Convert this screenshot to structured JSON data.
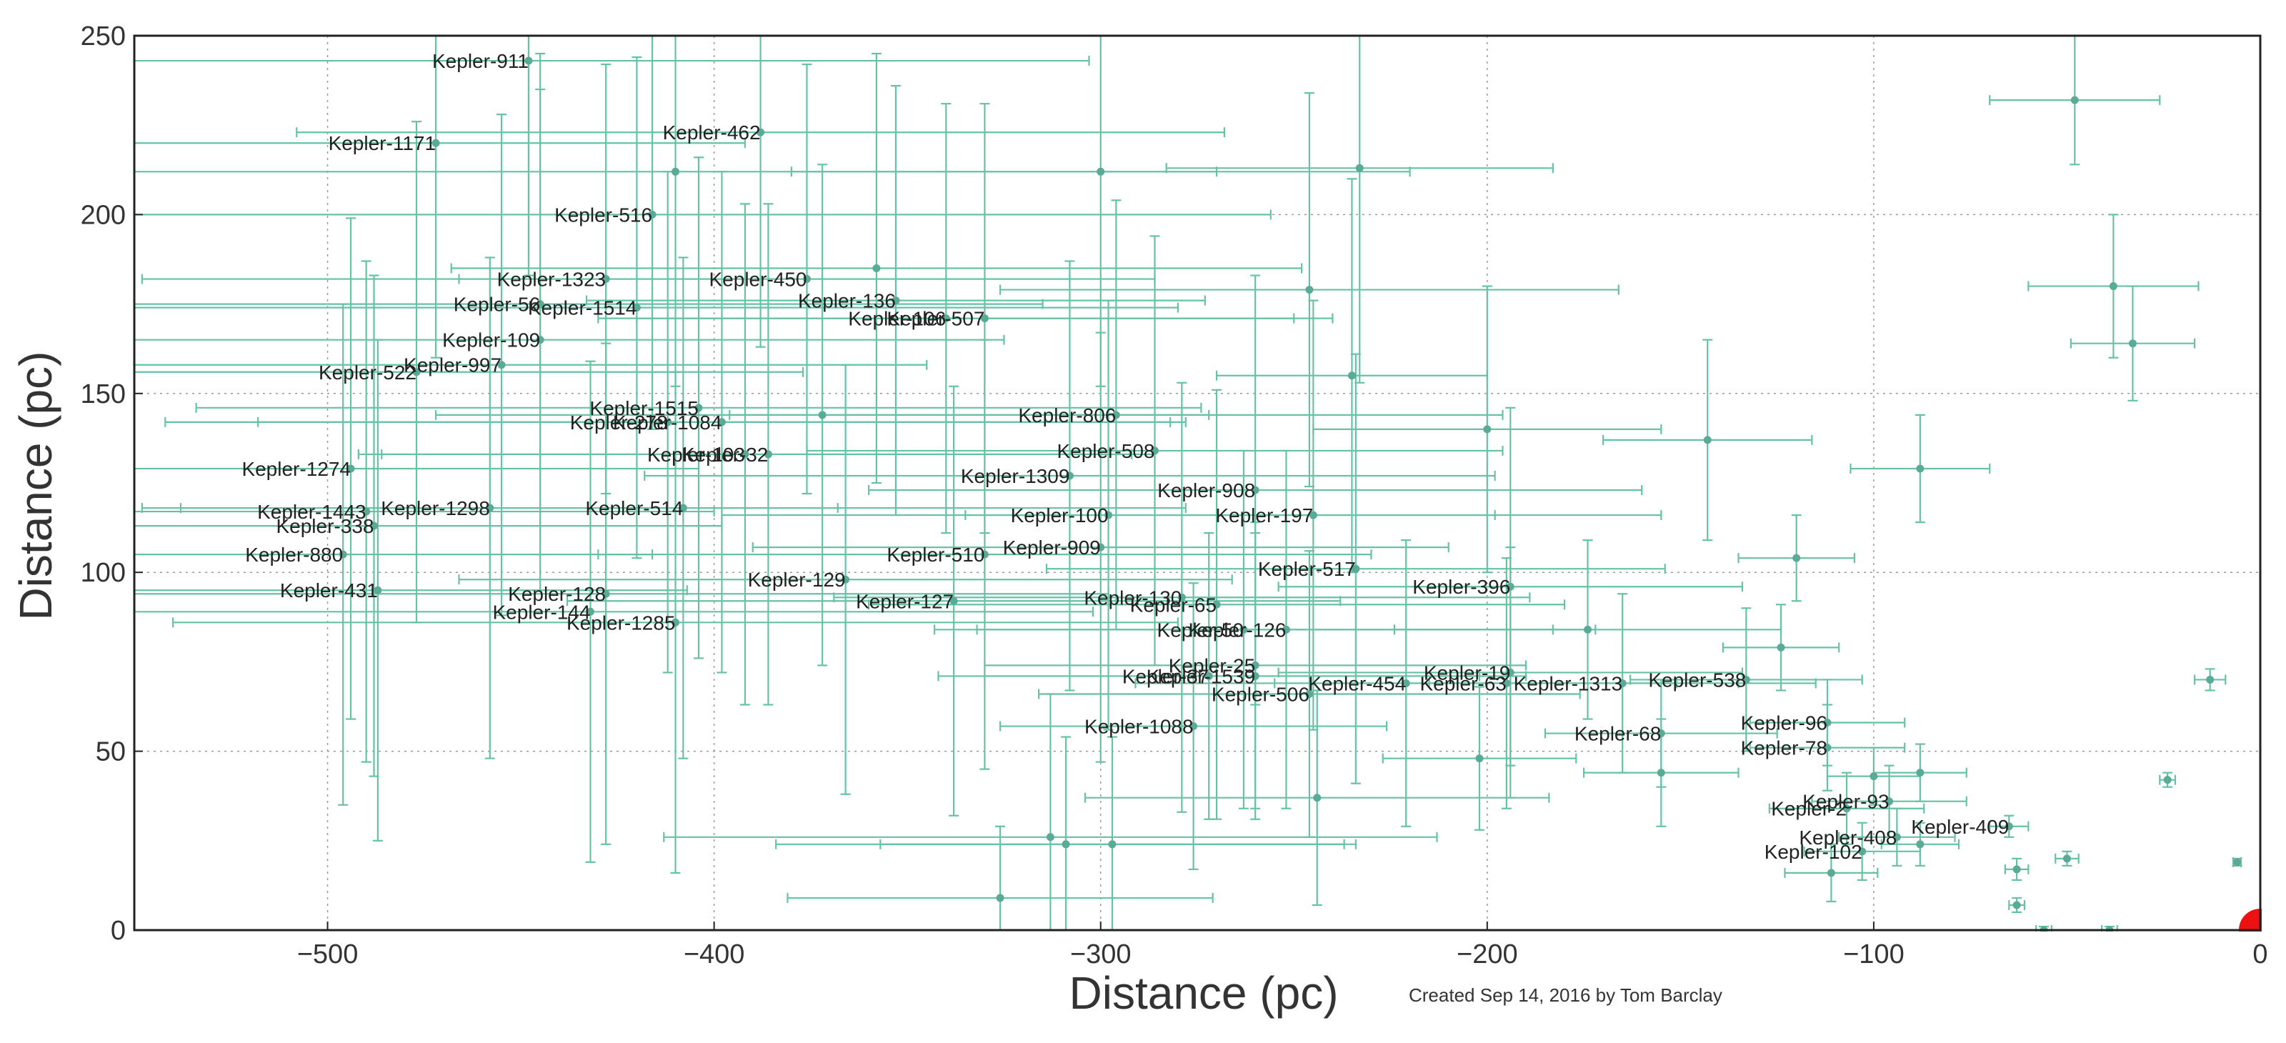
{
  "chart_data": {
    "type": "scatter",
    "title": "",
    "xlabel": "Distance (pc)",
    "ylabel": "Distance (pc)",
    "xlim": [
      -550,
      0
    ],
    "ylim": [
      0,
      250
    ],
    "xticks": [
      -500,
      -400,
      -300,
      -200,
      -100,
      0
    ],
    "yticks": [
      0,
      50,
      100,
      150,
      200,
      250
    ],
    "xtick_labels": [
      "−500",
      "−400",
      "−300",
      "−200",
      "−100",
      "0"
    ],
    "ytick_labels": [
      "0",
      "50",
      "100",
      "150",
      "200",
      "250"
    ],
    "grid": true,
    "colors": {
      "points": "#66c2a5",
      "marker": "#5aaa98",
      "sun": "#ee1111",
      "frame": "#222222",
      "grid": "#999999"
    },
    "credit": "Created Sep 14, 2016 by Tom Barclay",
    "points": [
      {
        "x": -448,
        "y": 243,
        "xerr": 145,
        "yerr": 60,
        "label": "Kepler-911"
      },
      {
        "x": -472,
        "y": 220,
        "xerr": 80,
        "yerr": 60,
        "label": "Kepler-1171"
      },
      {
        "x": -388,
        "y": 223,
        "xerr": 120,
        "yerr": 60,
        "label": "Kepler-462"
      },
      {
        "x": -410,
        "y": 212,
        "xerr": 140,
        "yerr": 60,
        "label": ""
      },
      {
        "x": -416,
        "y": 200,
        "xerr": 160,
        "yerr": 60,
        "label": "Kepler-516"
      },
      {
        "x": -428,
        "y": 182,
        "xerr": 120,
        "yerr": 60,
        "label": "Kepler-1323"
      },
      {
        "x": -376,
        "y": 182,
        "xerr": 90,
        "yerr": 60,
        "label": "Kepler-450"
      },
      {
        "x": -445,
        "y": 175,
        "xerr": 130,
        "yerr": 70,
        "label": "Kepler-56"
      },
      {
        "x": -420,
        "y": 174,
        "xerr": 140,
        "yerr": 70,
        "label": "Kepler-1514"
      },
      {
        "x": -353,
        "y": 176,
        "xerr": 80,
        "yerr": 60,
        "label": "Kepler-136"
      },
      {
        "x": -340,
        "y": 171,
        "xerr": 90,
        "yerr": 60,
        "label": "Kepler-106"
      },
      {
        "x": -330,
        "y": 171,
        "xerr": 90,
        "yerr": 60,
        "label": "Kepler-507"
      },
      {
        "x": -445,
        "y": 165,
        "xerr": 120,
        "yerr": 70,
        "label": "Kepler-109"
      },
      {
        "x": -455,
        "y": 158,
        "xerr": 110,
        "yerr": 70,
        "label": "Kepler-997"
      },
      {
        "x": -477,
        "y": 156,
        "xerr": 100,
        "yerr": 70,
        "label": "Kepler-522"
      },
      {
        "x": -404,
        "y": 146,
        "xerr": 130,
        "yerr": 70,
        "label": "Kepler-1515"
      },
      {
        "x": -412,
        "y": 142,
        "xerr": 130,
        "yerr": 70,
        "label": "Kepler-278"
      },
      {
        "x": -398,
        "y": 142,
        "xerr": 120,
        "yerr": 70,
        "label": "Kepler-1084"
      },
      {
        "x": -372,
        "y": 144,
        "xerr": 100,
        "yerr": 70,
        "label": ""
      },
      {
        "x": -296,
        "y": 144,
        "xerr": 100,
        "yerr": 60,
        "label": "Kepler-806"
      },
      {
        "x": -392,
        "y": 133,
        "xerr": 100,
        "yerr": 70,
        "label": "Kepler-103"
      },
      {
        "x": -386,
        "y": 133,
        "xerr": 100,
        "yerr": 70,
        "label": "Kepler-32"
      },
      {
        "x": -286,
        "y": 134,
        "xerr": 90,
        "yerr": 60,
        "label": "Kepler-508"
      },
      {
        "x": -494,
        "y": 129,
        "xerr": 90,
        "yerr": 70,
        "label": "Kepler-1274"
      },
      {
        "x": -308,
        "y": 127,
        "xerr": 110,
        "yerr": 60,
        "label": "Kepler-1309"
      },
      {
        "x": -260,
        "y": 123,
        "xerr": 100,
        "yerr": 60,
        "label": "Kepler-908"
      },
      {
        "x": -458,
        "y": 118,
        "xerr": 90,
        "yerr": 70,
        "label": "Kepler-1298"
      },
      {
        "x": -490,
        "y": 117,
        "xerr": 90,
        "yerr": 70,
        "label": "Kepler-1443"
      },
      {
        "x": -488,
        "y": 113,
        "xerr": 90,
        "yerr": 70,
        "label": "Kepler-338"
      },
      {
        "x": -408,
        "y": 118,
        "xerr": 130,
        "yerr": 70,
        "label": "Kepler-514"
      },
      {
        "x": -298,
        "y": 116,
        "xerr": 100,
        "yerr": 60,
        "label": "Kepler-100"
      },
      {
        "x": -245,
        "y": 116,
        "xerr": 90,
        "yerr": 60,
        "label": "Kepler-197"
      },
      {
        "x": -496,
        "y": 105,
        "xerr": 80,
        "yerr": 70,
        "label": "Kepler-880"
      },
      {
        "x": -330,
        "y": 105,
        "xerr": 100,
        "yerr": 60,
        "label": "Kepler-510"
      },
      {
        "x": -300,
        "y": 107,
        "xerr": 90,
        "yerr": 60,
        "label": "Kepler-909"
      },
      {
        "x": -234,
        "y": 101,
        "xerr": 80,
        "yerr": 60,
        "label": "Kepler-517"
      },
      {
        "x": -366,
        "y": 98,
        "xerr": 100,
        "yerr": 60,
        "label": "Kepler-129"
      },
      {
        "x": -194,
        "y": 96,
        "xerr": 60,
        "yerr": 50,
        "label": "Kepler-396"
      },
      {
        "x": -487,
        "y": 95,
        "xerr": 80,
        "yerr": 70,
        "label": "Kepler-431"
      },
      {
        "x": -428,
        "y": 94,
        "xerr": 130,
        "yerr": 70,
        "label": "Kepler-128"
      },
      {
        "x": -338,
        "y": 92,
        "xerr": 100,
        "yerr": 60,
        "label": "Kepler-127"
      },
      {
        "x": -279,
        "y": 93,
        "xerr": 90,
        "yerr": 60,
        "label": "Kepler-130"
      },
      {
        "x": -270,
        "y": 91,
        "xerr": 90,
        "yerr": 60,
        "label": "Kepler-65"
      },
      {
        "x": -432,
        "y": 89,
        "xerr": 130,
        "yerr": 70,
        "label": "Kepler-144"
      },
      {
        "x": -410,
        "y": 86,
        "xerr": 130,
        "yerr": 70,
        "label": "Kepler-1285"
      },
      {
        "x": -263,
        "y": 84,
        "xerr": 80,
        "yerr": 50,
        "label": "Kepler-50"
      },
      {
        "x": -252,
        "y": 84,
        "xerr": 80,
        "yerr": 50,
        "label": "Kepler-126"
      },
      {
        "x": -174,
        "y": 84,
        "xerr": 50,
        "yerr": 25,
        "label": ""
      },
      {
        "x": -260,
        "y": 74,
        "xerr": 70,
        "yerr": 40,
        "label": "Kepler-25"
      },
      {
        "x": -260,
        "y": 71,
        "xerr": 70,
        "yerr": 40,
        "label": "Kepler-1539"
      },
      {
        "x": -272,
        "y": 71,
        "xerr": 70,
        "yerr": 40,
        "label": "Kepler-37"
      },
      {
        "x": -194,
        "y": 72,
        "xerr": 60,
        "yerr": 35,
        "label": "Kepler-19"
      },
      {
        "x": -221,
        "y": 69,
        "xerr": 70,
        "yerr": 40,
        "label": "Kepler-454"
      },
      {
        "x": -195,
        "y": 69,
        "xerr": 60,
        "yerr": 35,
        "label": "Kepler-63"
      },
      {
        "x": -165,
        "y": 69,
        "xerr": 50,
        "yerr": 25,
        "label": "Kepler-1313"
      },
      {
        "x": -133,
        "y": 70,
        "xerr": 30,
        "yerr": 20,
        "label": "Kepler-538"
      },
      {
        "x": -246,
        "y": 66,
        "xerr": 70,
        "yerr": 40,
        "label": "Kepler-506"
      },
      {
        "x": -276,
        "y": 57,
        "xerr": 50,
        "yerr": 40,
        "label": "Kepler-1088"
      },
      {
        "x": -112,
        "y": 58,
        "xerr": 20,
        "yerr": 12,
        "label": "Kepler-96"
      },
      {
        "x": -155,
        "y": 55,
        "xerr": 30,
        "yerr": 15,
        "label": "Kepler-68"
      },
      {
        "x": -112,
        "y": 51,
        "xerr": 20,
        "yerr": 12,
        "label": "Kepler-78"
      },
      {
        "x": -96,
        "y": 36,
        "xerr": 20,
        "yerr": 10,
        "label": "Kepler-93"
      },
      {
        "x": -107,
        "y": 34,
        "xerr": 20,
        "yerr": 10,
        "label": "Kepler-2"
      },
      {
        "x": -65,
        "y": 29,
        "xerr": 5,
        "yerr": 3,
        "label": "Kepler-409"
      },
      {
        "x": -94,
        "y": 26,
        "xerr": 15,
        "yerr": 8,
        "label": "Kepler-408"
      },
      {
        "x": -103,
        "y": 22,
        "xerr": 15,
        "yerr": 8,
        "label": "Kepler-102"
      },
      {
        "x": -200,
        "y": 140,
        "xerr": 45,
        "yerr": 40,
        "label": ""
      },
      {
        "x": -235,
        "y": 155,
        "xerr": 35,
        "yerr": 55,
        "label": ""
      },
      {
        "x": -233,
        "y": 213,
        "xerr": 50,
        "yerr": 60,
        "label": ""
      },
      {
        "x": -300,
        "y": 212,
        "xerr": 80,
        "yerr": 60,
        "label": ""
      },
      {
        "x": -246,
        "y": 179,
        "xerr": 80,
        "yerr": 55,
        "label": ""
      },
      {
        "x": -358,
        "y": 185,
        "xerr": 110,
        "yerr": 60,
        "label": ""
      },
      {
        "x": -143,
        "y": 137,
        "xerr": 27,
        "yerr": 28,
        "label": ""
      },
      {
        "x": -88,
        "y": 129,
        "xerr": 18,
        "yerr": 15,
        "label": ""
      },
      {
        "x": -120,
        "y": 104,
        "xerr": 15,
        "yerr": 12,
        "label": ""
      },
      {
        "x": -124,
        "y": 79,
        "xerr": 15,
        "yerr": 12,
        "label": ""
      },
      {
        "x": -38,
        "y": 180,
        "xerr": 22,
        "yerr": 20,
        "label": ""
      },
      {
        "x": -33,
        "y": 164,
        "xerr": 16,
        "yerr": 16,
        "label": ""
      },
      {
        "x": -48,
        "y": 232,
        "xerr": 22,
        "yerr": 18,
        "label": ""
      },
      {
        "x": -13,
        "y": 70,
        "xerr": 4,
        "yerr": 3,
        "label": ""
      },
      {
        "x": -24,
        "y": 42,
        "xerr": 2,
        "yerr": 2,
        "label": ""
      },
      {
        "x": -50,
        "y": 20,
        "xerr": 3,
        "yerr": 2,
        "label": ""
      },
      {
        "x": -63,
        "y": 17,
        "xerr": 3,
        "yerr": 3,
        "label": ""
      },
      {
        "x": -63,
        "y": 7,
        "xerr": 2,
        "yerr": 2,
        "label": ""
      },
      {
        "x": -56,
        "y": 0,
        "xerr": 2,
        "yerr": 1,
        "label": ""
      },
      {
        "x": -39,
        "y": 0,
        "xerr": 2,
        "yerr": 1,
        "label": ""
      },
      {
        "x": -6,
        "y": 19,
        "xerr": 1,
        "yerr": 1,
        "label": ""
      },
      {
        "x": -111,
        "y": 16,
        "xerr": 12,
        "yerr": 8,
        "label": ""
      },
      {
        "x": -88,
        "y": 24,
        "xerr": 10,
        "yerr": 6,
        "label": ""
      },
      {
        "x": -88,
        "y": 44,
        "xerr": 12,
        "yerr": 8,
        "label": ""
      },
      {
        "x": -100,
        "y": 43,
        "xerr": 12,
        "yerr": 8,
        "label": ""
      },
      {
        "x": -155,
        "y": 44,
        "xerr": 20,
        "yerr": 15,
        "label": ""
      },
      {
        "x": -202,
        "y": 48,
        "xerr": 25,
        "yerr": 20,
        "label": ""
      },
      {
        "x": -244,
        "y": 37,
        "xerr": 60,
        "yerr": 30,
        "label": ""
      },
      {
        "x": -313,
        "y": 26,
        "xerr": 100,
        "yerr": 40,
        "label": ""
      },
      {
        "x": -309,
        "y": 24,
        "xerr": 75,
        "yerr": 30,
        "label": ""
      },
      {
        "x": -297,
        "y": 24,
        "xerr": 60,
        "yerr": 30,
        "label": ""
      },
      {
        "x": -326,
        "y": 9,
        "xerr": 55,
        "yerr": 20,
        "label": ""
      }
    ]
  }
}
